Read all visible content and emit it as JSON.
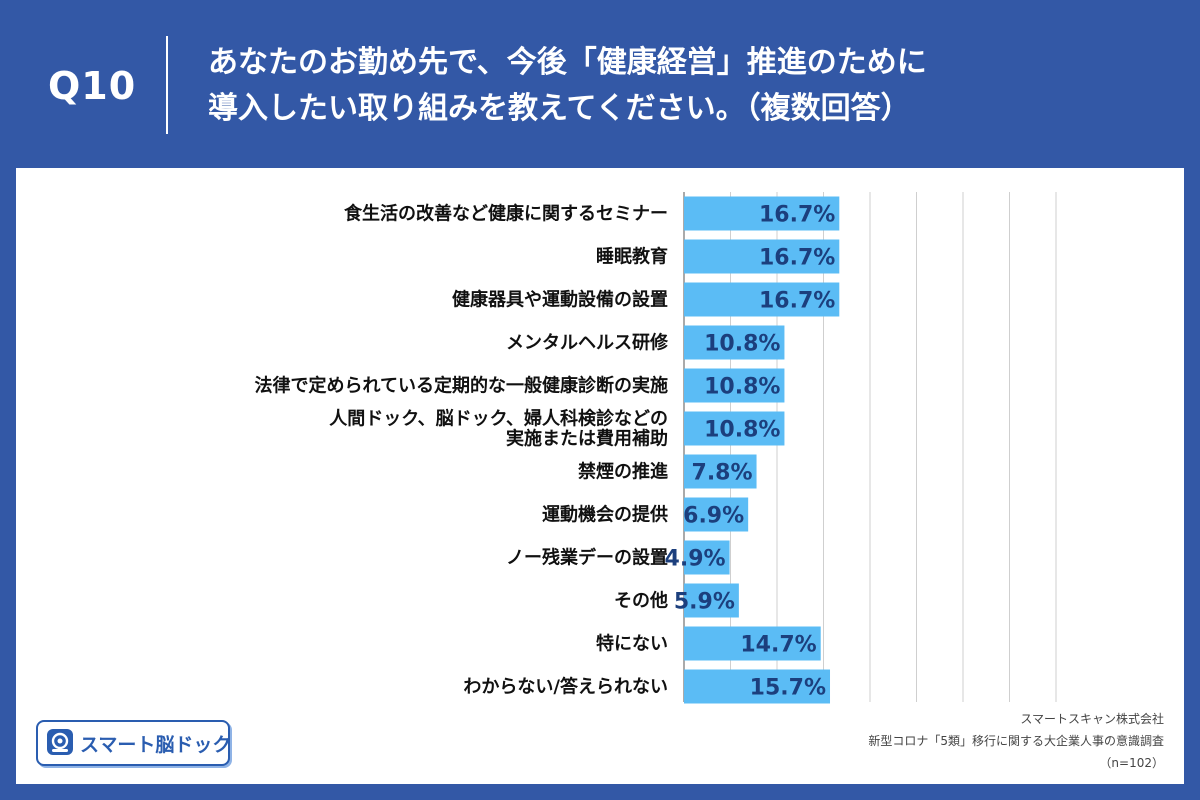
{
  "header": {
    "question_number": "Q10",
    "title_line1": "あなたのお勤め先で、今後「健康経営」推進のために",
    "title_line2": "導入したい取り組みを教えてください。（複数回答）"
  },
  "colors": {
    "background": "#3358a6",
    "bar": "#5bbcf5",
    "value_text": "#1c3f7d",
    "grid": "#cfcfcf"
  },
  "chart_data": {
    "type": "bar",
    "orientation": "horizontal",
    "title": "あなたのお勤め先で、今後「健康経営」推進のために導入したい取り組みを教えてください。（複数回答）",
    "xlim": [
      0,
      40
    ],
    "value_suffix": "%",
    "grid": true,
    "categories": [
      [
        "食生活の改善など健康に関するセミナー"
      ],
      [
        "睡眠教育"
      ],
      [
        "健康器具や運動設備の設置"
      ],
      [
        "メンタルヘルス研修"
      ],
      [
        "法律で定められている定期的な一般健康診断の実施"
      ],
      [
        "人間ドック、脳ドック、婦人科検診などの",
        "実施または費用補助"
      ],
      [
        "禁煙の推進"
      ],
      [
        "運動機会の提供"
      ],
      [
        "ノー残業デーの設置"
      ],
      [
        "その他"
      ],
      [
        "特にない"
      ],
      [
        "わからない/答えられない"
      ]
    ],
    "values": [
      16.7,
      16.7,
      16.7,
      10.8,
      10.8,
      10.8,
      7.8,
      6.9,
      4.9,
      5.9,
      14.7,
      15.7
    ]
  },
  "logo": {
    "name": "スマート脳ドック",
    "icon": "brain-scan-icon"
  },
  "credits": {
    "company": "スマートスキャン株式会社",
    "survey": "新型コロナ「5類」移行に関する大企業人事の意識調査",
    "sample": "（n=102）"
  }
}
